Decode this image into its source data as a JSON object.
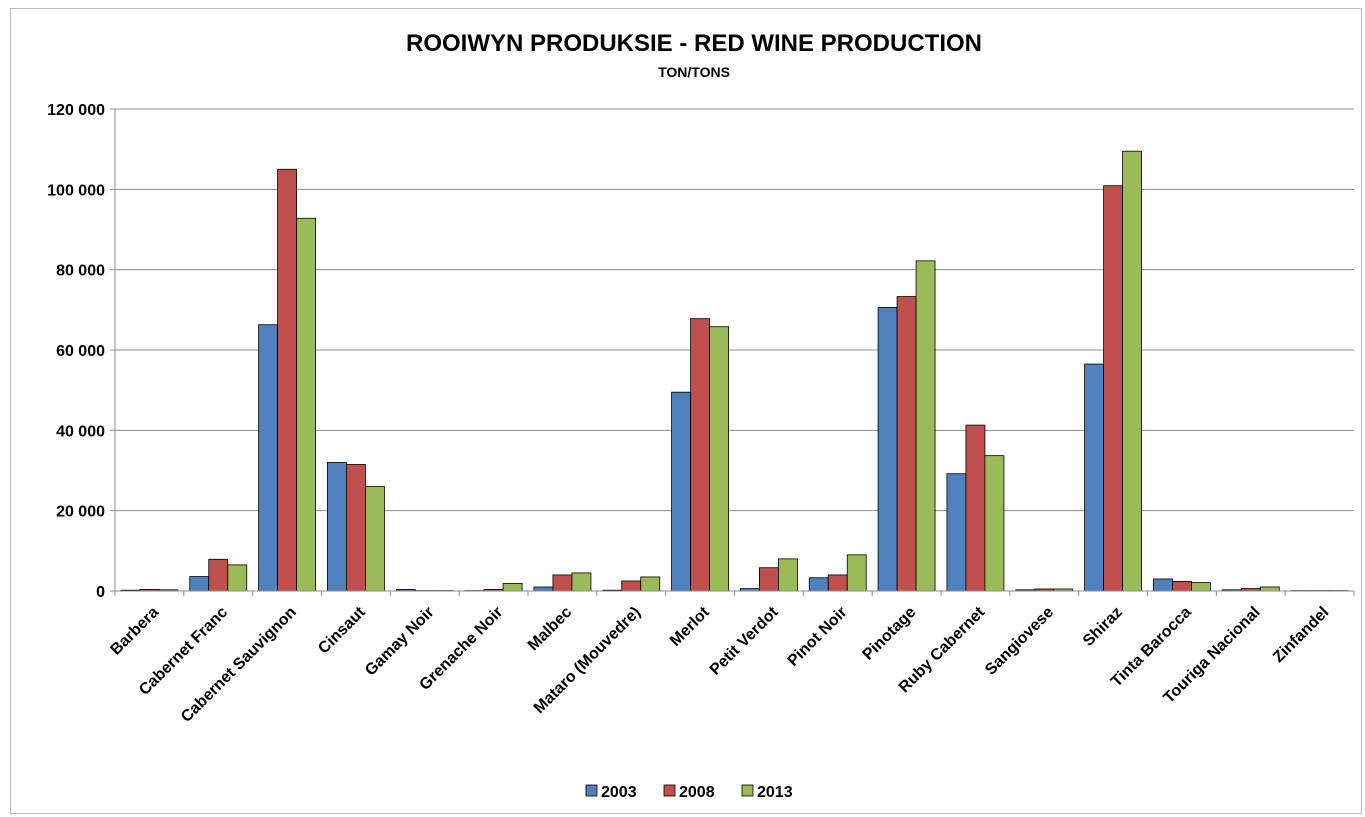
{
  "chart_data": {
    "type": "bar",
    "title": "ROOIWYN PRODUKSIE - RED WINE PRODUCTION",
    "subtitle": "TON/TONS",
    "xlabel": "",
    "ylabel": "",
    "ylim": [
      0,
      120000
    ],
    "yticks": [
      0,
      20000,
      40000,
      60000,
      80000,
      100000,
      120000
    ],
    "ytick_labels": [
      "0",
      "20 000",
      "40 000",
      "60 000",
      "80 000",
      "100 000",
      "120 000"
    ],
    "grid": true,
    "legend_position": "bottom",
    "categories": [
      "Barbera",
      "Cabernet Franc",
      "Cabernet Sauvignon",
      "Cinsaut",
      "Gamay Noir",
      "Grenache Noir",
      "Malbec",
      "Mataro (Mouvedre)",
      "Merlot",
      "Petit Verdot",
      "Pinot Noir",
      "Pinotage",
      "Ruby Cabernet",
      "Sangiovese",
      "Shiraz",
      "Tinta Barocca",
      "Touriga Nacional",
      "Zinfandel"
    ],
    "series": [
      {
        "name": "2003",
        "color": "#4f81bd",
        "values": [
          200,
          3600,
          66300,
          32000,
          400,
          100,
          1000,
          200,
          49500,
          600,
          3300,
          70600,
          29200,
          300,
          56500,
          3000,
          300,
          100
        ]
      },
      {
        "name": "2008",
        "color": "#c0504d",
        "values": [
          400,
          7900,
          105000,
          31500,
          100,
          400,
          4000,
          2500,
          67800,
          5800,
          4000,
          73300,
          41300,
          500,
          100900,
          2400,
          600,
          100
        ]
      },
      {
        "name": "2013",
        "color": "#9bbb59",
        "values": [
          300,
          6500,
          92800,
          26000,
          100,
          1900,
          4500,
          3500,
          65800,
          8000,
          9000,
          82200,
          33700,
          500,
          109500,
          2100,
          1000,
          100
        ]
      }
    ]
  }
}
